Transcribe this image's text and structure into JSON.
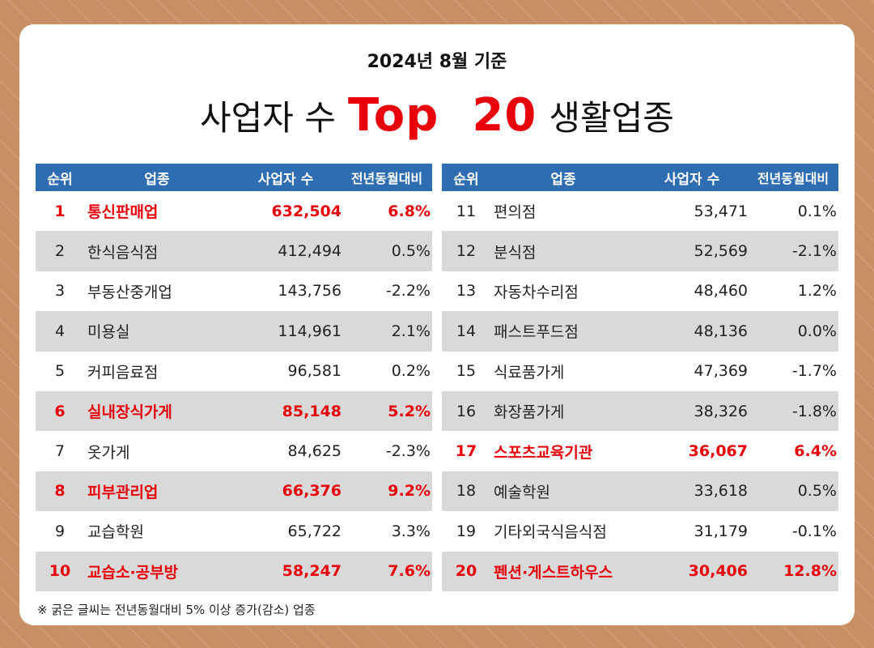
{
  "subtitle": "2024년 8월 기준",
  "title": {
    "before": "사업자 수",
    "highlight": "Top  20",
    "after": "생활업종"
  },
  "table": {
    "headers": {
      "rank": "순위",
      "name": "업종",
      "count": "사업자 수",
      "yoy": "전년동월대비"
    },
    "rows": [
      {
        "rank": "1",
        "name": "통신판매업",
        "count": "632,504",
        "yoy": "6.8%",
        "bold": true
      },
      {
        "rank": "2",
        "name": "한식음식점",
        "count": "412,494",
        "yoy": "0.5%",
        "bold": false
      },
      {
        "rank": "3",
        "name": "부동산중개업",
        "count": "143,756",
        "yoy": "-2.2%",
        "bold": false
      },
      {
        "rank": "4",
        "name": "미용실",
        "count": "114,961",
        "yoy": "2.1%",
        "bold": false
      },
      {
        "rank": "5",
        "name": "커피음료점",
        "count": "96,581",
        "yoy": "0.2%",
        "bold": false
      },
      {
        "rank": "6",
        "name": "실내장식가게",
        "count": "85,148",
        "yoy": "5.2%",
        "bold": true
      },
      {
        "rank": "7",
        "name": "옷가게",
        "count": "84,625",
        "yoy": "-2.3%",
        "bold": false
      },
      {
        "rank": "8",
        "name": "피부관리업",
        "count": "66,376",
        "yoy": "9.2%",
        "bold": true
      },
      {
        "rank": "9",
        "name": "교습학원",
        "count": "65,722",
        "yoy": "3.3%",
        "bold": false
      },
      {
        "rank": "10",
        "name": "교습소·공부방",
        "count": "58,247",
        "yoy": "7.6%",
        "bold": true
      },
      {
        "rank": "11",
        "name": "편의점",
        "count": "53,471",
        "yoy": "0.1%",
        "bold": false
      },
      {
        "rank": "12",
        "name": "분식점",
        "count": "52,569",
        "yoy": "-2.1%",
        "bold": false
      },
      {
        "rank": "13",
        "name": "자동차수리점",
        "count": "48,460",
        "yoy": "1.2%",
        "bold": false
      },
      {
        "rank": "14",
        "name": "패스트푸드점",
        "count": "48,136",
        "yoy": "0.0%",
        "bold": false
      },
      {
        "rank": "15",
        "name": "식료품가게",
        "count": "47,369",
        "yoy": "-1.7%",
        "bold": false
      },
      {
        "rank": "16",
        "name": "화장품가게",
        "count": "38,326",
        "yoy": "-1.8%",
        "bold": false
      },
      {
        "rank": "17",
        "name": "스포츠교육기관",
        "count": "36,067",
        "yoy": "6.4%",
        "bold": true
      },
      {
        "rank": "18",
        "name": "예술학원",
        "count": "33,618",
        "yoy": "0.5%",
        "bold": false
      },
      {
        "rank": "19",
        "name": "기타외국식음식점",
        "count": "31,179",
        "yoy": "-0.1%",
        "bold": false
      },
      {
        "rank": "20",
        "name": "펜션·게스트하우스",
        "count": "30,406",
        "yoy": "12.8%",
        "bold": true
      }
    ]
  },
  "note": "※ 굵은 글씨는 전년동월대비 5% 이상 증가(감소) 업종",
  "colors": {
    "highlight": "#e8000b",
    "header": "#2e6db2",
    "stripe": "#d9d9d9",
    "background": "#c78f63"
  }
}
